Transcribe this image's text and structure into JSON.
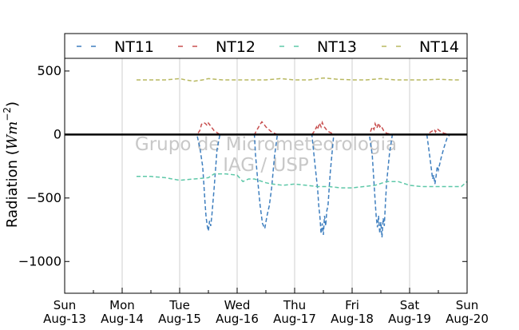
{
  "chart_data": {
    "type": "line",
    "ylabel_text": "Radiation (",
    "ylabel_unit_base": "Wm",
    "ylabel_unit_exp": "−2",
    "ylabel_close": ")",
    "ylim": [
      -1250,
      600
    ],
    "yticks": [
      500,
      0,
      -500,
      -1000
    ],
    "ytick_labels": [
      "500",
      "0",
      "−500",
      "−1000"
    ],
    "xlim": [
      0,
      7
    ],
    "xticks": [
      0,
      1,
      2,
      3,
      4,
      5,
      6,
      7
    ],
    "xtick_day_labels": [
      "Sun",
      "Mon",
      "Tue",
      "Wed",
      "Thu",
      "Fri",
      "Sat",
      "Sun"
    ],
    "xtick_date_labels": [
      "Aug-13",
      "Aug-14",
      "Aug-15",
      "Aug-16",
      "Aug-17",
      "Aug-18",
      "Aug-19",
      "Aug-20"
    ],
    "grid": "vertical",
    "legend_position": "top",
    "watermark": [
      "Grupo de Micrometeorologia",
      "IAG / USP"
    ],
    "series": [
      {
        "name": "NT11",
        "color": "#3f7fbf",
        "x": [
          0.0,
          1.25,
          2.3,
          2.35,
          2.4,
          2.42,
          2.44,
          2.46,
          2.48,
          2.5,
          2.52,
          2.54,
          2.56,
          2.6,
          2.65,
          2.7,
          3.3,
          3.32,
          3.36,
          3.4,
          3.44,
          3.48,
          3.52,
          3.56,
          3.6,
          3.65,
          3.7,
          4.3,
          4.35,
          4.4,
          4.42,
          4.44,
          4.46,
          4.48,
          4.5,
          4.52,
          4.54,
          4.56,
          4.58,
          4.62,
          4.68,
          5.3,
          5.35,
          5.38,
          5.4,
          5.42,
          5.44,
          5.46,
          5.48,
          5.5,
          5.52,
          5.54,
          5.56,
          5.58,
          5.6,
          5.65,
          5.7,
          6.3,
          6.35,
          6.38,
          6.4,
          6.42,
          6.44,
          6.46,
          6.48,
          6.5,
          6.55,
          6.6,
          6.65,
          6.7
        ],
        "y": [
          0,
          0,
          0,
          -100,
          -250,
          -380,
          -530,
          -650,
          -720,
          -760,
          -680,
          -720,
          -640,
          -420,
          -120,
          0,
          0,
          -160,
          -370,
          -560,
          -700,
          -740,
          -640,
          -560,
          -420,
          -170,
          0,
          0,
          -220,
          -430,
          -560,
          -650,
          -780,
          -700,
          -790,
          -640,
          -720,
          -600,
          -560,
          -300,
          0,
          0,
          -160,
          -380,
          -520,
          -650,
          -730,
          -640,
          -780,
          -690,
          -810,
          -660,
          -720,
          -530,
          -380,
          -150,
          0,
          0,
          -170,
          -280,
          -350,
          -320,
          -390,
          -330,
          -250,
          -280,
          -180,
          -100,
          -30,
          0
        ]
      },
      {
        "name": "NT12",
        "color": "#c85050",
        "x": [
          0.0,
          2.3,
          2.35,
          2.38,
          2.42,
          2.45,
          2.48,
          2.5,
          2.55,
          2.6,
          2.7,
          3.3,
          3.35,
          3.4,
          3.43,
          3.46,
          3.5,
          3.55,
          3.6,
          3.7,
          4.3,
          4.35,
          4.38,
          4.4,
          4.43,
          4.46,
          4.48,
          4.5,
          4.55,
          4.6,
          4.7,
          5.3,
          5.35,
          5.38,
          5.4,
          5.43,
          5.46,
          5.48,
          5.5,
          5.55,
          5.6,
          5.7,
          6.3,
          6.35,
          6.4,
          6.43,
          6.45,
          6.48,
          6.52,
          6.56,
          6.6,
          6.7
        ],
        "y": [
          0,
          0,
          30,
          80,
          95,
          85,
          70,
          90,
          60,
          30,
          0,
          0,
          40,
          80,
          100,
          85,
          60,
          40,
          20,
          0,
          0,
          30,
          60,
          40,
          90,
          60,
          95,
          70,
          40,
          20,
          0,
          0,
          60,
          40,
          85,
          50,
          90,
          60,
          70,
          30,
          10,
          0,
          0,
          15,
          30,
          40,
          20,
          45,
          30,
          20,
          10,
          0
        ]
      },
      {
        "name": "NT13",
        "color": "#5ec8a8",
        "x": [
          1.25,
          1.5,
          1.75,
          2.0,
          2.25,
          2.5,
          2.6,
          2.8,
          3.0,
          3.1,
          3.2,
          3.3,
          3.5,
          3.6,
          3.8,
          4.0,
          4.2,
          4.4,
          4.6,
          4.8,
          5.0,
          5.2,
          5.4,
          5.6,
          5.8,
          6.0,
          6.2,
          6.4,
          6.6,
          6.8,
          6.9,
          7.0
        ],
        "y": [
          -330,
          -330,
          -340,
          -360,
          -350,
          -340,
          -310,
          -310,
          -320,
          -370,
          -350,
          -350,
          -380,
          -390,
          -400,
          -390,
          -400,
          -410,
          -410,
          -420,
          -420,
          -410,
          -400,
          -370,
          -370,
          -400,
          -410,
          -410,
          -410,
          -410,
          -410,
          -370
        ]
      },
      {
        "name": "NT14",
        "color": "#b8b860",
        "x": [
          1.25,
          1.5,
          1.75,
          2.0,
          2.1,
          2.25,
          2.4,
          2.5,
          2.75,
          3.0,
          3.25,
          3.5,
          3.75,
          4.0,
          4.25,
          4.5,
          4.75,
          5.0,
          5.25,
          5.5,
          5.75,
          6.0,
          6.25,
          6.5,
          6.75,
          6.9
        ],
        "y": [
          430,
          430,
          430,
          440,
          430,
          420,
          430,
          440,
          430,
          430,
          430,
          430,
          440,
          430,
          430,
          445,
          435,
          430,
          430,
          440,
          430,
          430,
          430,
          435,
          430,
          430
        ]
      }
    ]
  }
}
